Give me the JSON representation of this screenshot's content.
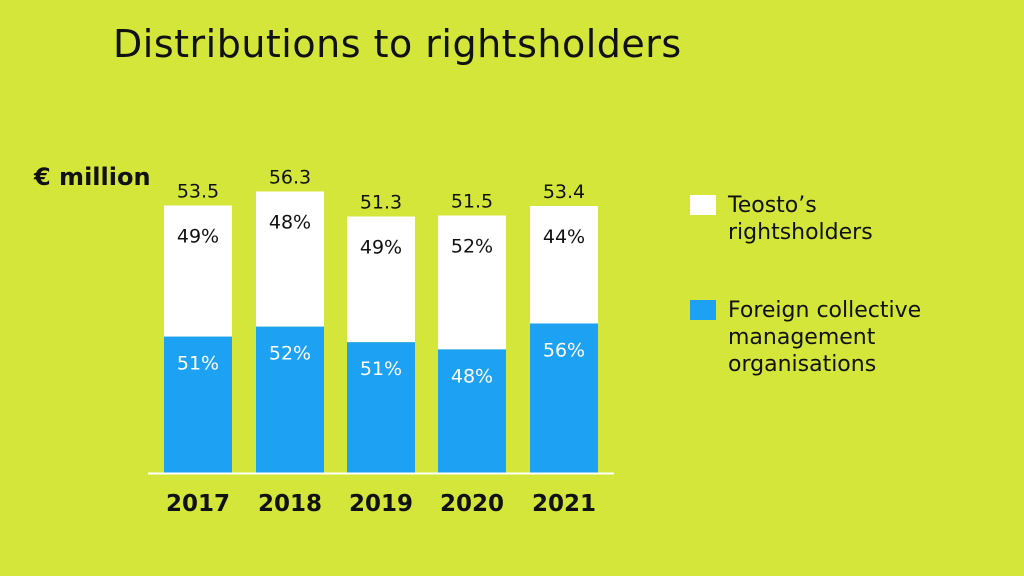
{
  "title": "Distributions to rightsholders",
  "unit_label": "€ million",
  "legend": {
    "teosto": "Teosto’s rightsholders",
    "foreign": "Foreign collective management organisations"
  },
  "colors": {
    "background": "#d4e63a",
    "teosto": "#ffffff",
    "foreign": "#1da1f2",
    "text": "#111111",
    "foreign_text": "#ffffff"
  },
  "chart_data": {
    "type": "bar",
    "stacked": true,
    "title": "Distributions to rightsholders",
    "ylabel": "€ million",
    "categories": [
      "2017",
      "2018",
      "2019",
      "2020",
      "2021"
    ],
    "totals": [
      53.5,
      56.3,
      51.3,
      51.5,
      53.4
    ],
    "total_labels": [
      "53.5",
      "56.3",
      "51.3",
      "51.5",
      "53.4"
    ],
    "series": [
      {
        "name": "Foreign collective management organisations",
        "percent": [
          51,
          52,
          51,
          48,
          56
        ],
        "labels": [
          "51%",
          "52%",
          "51%",
          "48%",
          "56%"
        ]
      },
      {
        "name": "Teosto’s rightsholders",
        "percent": [
          49,
          48,
          49,
          52,
          44
        ],
        "labels": [
          "49%",
          "48%",
          "49%",
          "52%",
          "44%"
        ]
      }
    ],
    "ylim": [
      0,
      56.3
    ],
    "grid": false,
    "legend_position": "right"
  }
}
